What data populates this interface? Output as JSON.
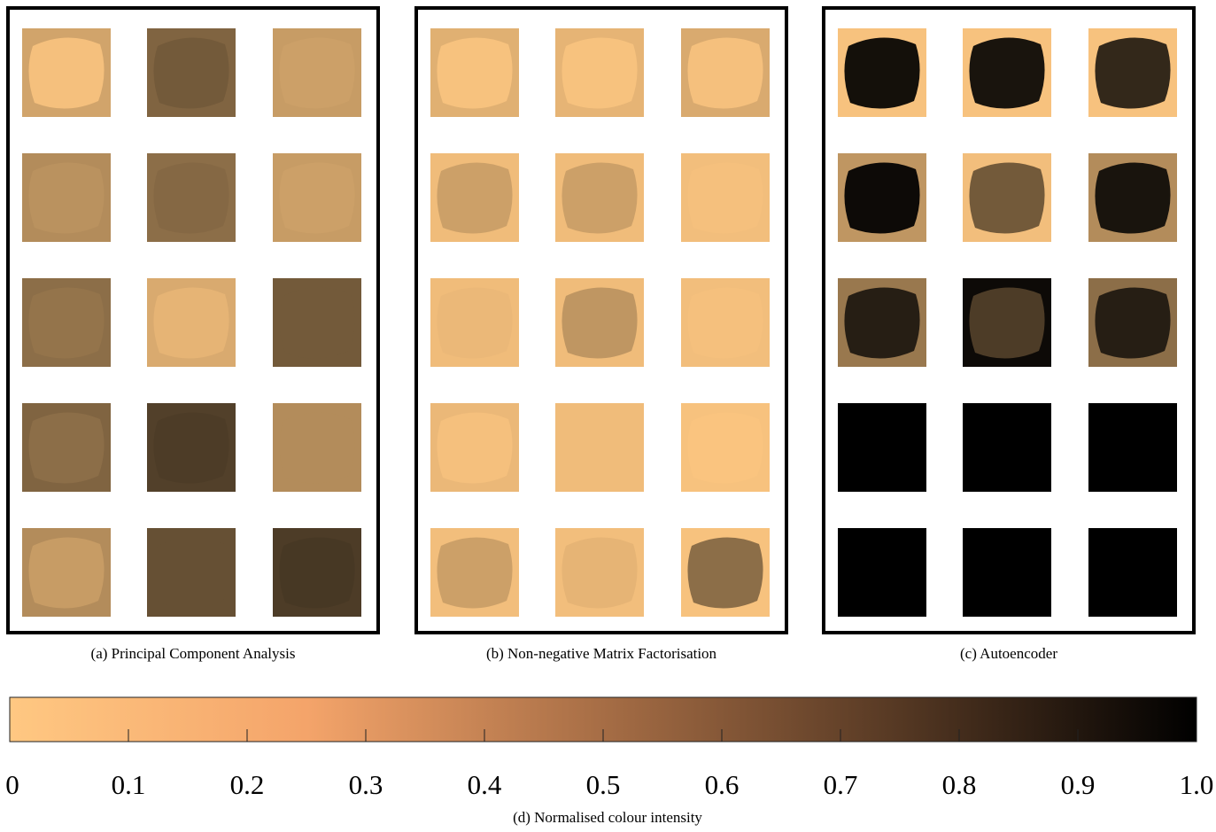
{
  "panels": [
    {
      "caption": "(a) Principal Component Analysis"
    },
    {
      "caption": "(b) Non-negative Matrix Factorisation"
    },
    {
      "caption": "(c) Autoencoder"
    }
  ],
  "colorbar": {
    "lim": [
      0,
      1
    ],
    "ticks": [
      0,
      0.1,
      0.2,
      0.3,
      0.4,
      0.5,
      0.6,
      0.7,
      0.8,
      0.9,
      {
        "value": 1,
        "label": "1.0"
      }
    ],
    "caption": "(d) Normalised colour intensity"
  }
}
